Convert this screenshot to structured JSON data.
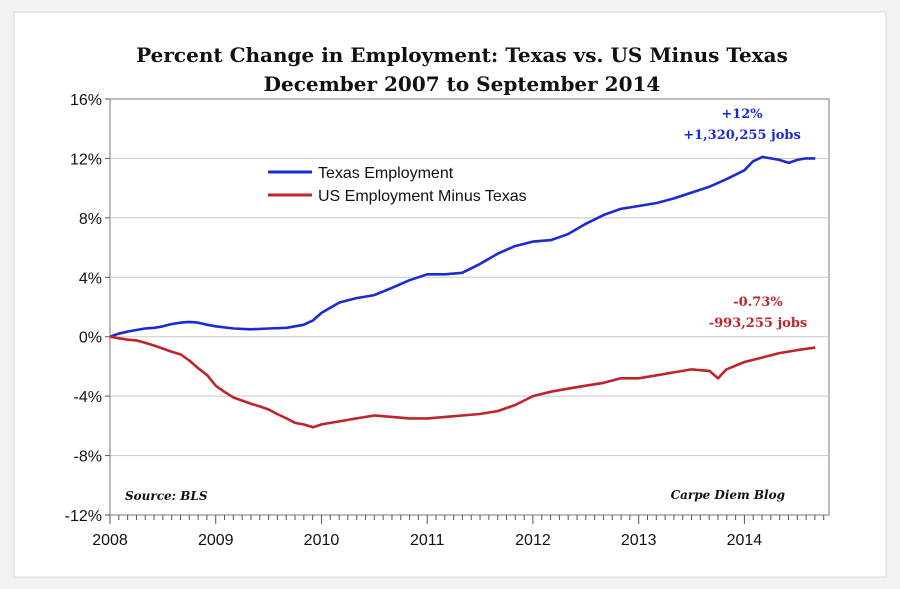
{
  "chart_data": {
    "type": "line",
    "title": "Percent Change in Employment: Texas vs. US Minus Texas",
    "subtitle": "December 2007 to September 2014",
    "xlabel": "",
    "ylabel": "",
    "xlim": [
      2008,
      2014.8
    ],
    "ylim": [
      -12,
      16
    ],
    "y_ticks": [
      16,
      12,
      8,
      4,
      0,
      -4,
      -8,
      -12
    ],
    "y_tick_labels": [
      "16%",
      "12%",
      "8%",
      "4%",
      "0%",
      "-4%",
      "-8%",
      "-12%"
    ],
    "x_ticks": [
      2008,
      2009,
      2010,
      2011,
      2012,
      2013,
      2014
    ],
    "x_tick_labels": [
      "2008",
      "2009",
      "2010",
      "2011",
      "2012",
      "2013",
      "2014"
    ],
    "grid": "horizontal",
    "legend_position": "top-center",
    "series": [
      {
        "name": "Texas Employment",
        "color": "#1a2bd1",
        "x": [
          2008,
          2008.08,
          2008.17,
          2008.25,
          2008.33,
          2008.42,
          2008.5,
          2008.58,
          2008.67,
          2008.75,
          2008.83,
          2008.92,
          2009,
          2009.17,
          2009.33,
          2009.5,
          2009.67,
          2009.83,
          2009.92,
          2010,
          2010.17,
          2010.33,
          2010.5,
          2010.67,
          2010.83,
          2011,
          2011.17,
          2011.33,
          2011.5,
          2011.67,
          2011.83,
          2012,
          2012.17,
          2012.33,
          2012.5,
          2012.67,
          2012.83,
          2013,
          2013.17,
          2013.33,
          2013.5,
          2013.67,
          2013.83,
          2014,
          2014.08,
          2014.17,
          2014.25,
          2014.33,
          2014.42,
          2014.5,
          2014.58,
          2014.67
        ],
        "values": [
          0,
          0.2,
          0.35,
          0.45,
          0.55,
          0.6,
          0.7,
          0.85,
          0.95,
          1.0,
          0.95,
          0.8,
          0.7,
          0.55,
          0.5,
          0.55,
          0.6,
          0.8,
          1.1,
          1.6,
          2.3,
          2.6,
          2.8,
          3.3,
          3.8,
          4.2,
          4.2,
          4.3,
          4.9,
          5.6,
          6.1,
          6.4,
          6.5,
          6.9,
          7.6,
          8.2,
          8.6,
          8.8,
          9.0,
          9.3,
          9.7,
          10.1,
          10.6,
          11.2,
          11.8,
          12.1,
          12.0,
          11.9,
          11.7,
          11.9,
          12.0,
          12.0
        ]
      },
      {
        "name": "US Employment Minus Texas",
        "color": "#c0242a",
        "x": [
          2008,
          2008.08,
          2008.17,
          2008.25,
          2008.33,
          2008.42,
          2008.5,
          2008.58,
          2008.67,
          2008.75,
          2008.83,
          2008.92,
          2009,
          2009.08,
          2009.17,
          2009.25,
          2009.33,
          2009.42,
          2009.5,
          2009.58,
          2009.67,
          2009.75,
          2009.83,
          2009.92,
          2010,
          2010.17,
          2010.33,
          2010.5,
          2010.67,
          2010.83,
          2011,
          2011.17,
          2011.33,
          2011.5,
          2011.67,
          2011.83,
          2012,
          2012.17,
          2012.33,
          2012.5,
          2012.67,
          2012.83,
          2013,
          2013.17,
          2013.33,
          2013.5,
          2013.67,
          2013.75,
          2013.83,
          2014,
          2014.17,
          2014.33,
          2014.5,
          2014.67
        ],
        "values": [
          0,
          -0.1,
          -0.2,
          -0.25,
          -0.4,
          -0.6,
          -0.8,
          -1.0,
          -1.2,
          -1.6,
          -2.1,
          -2.6,
          -3.3,
          -3.7,
          -4.1,
          -4.3,
          -4.5,
          -4.7,
          -4.9,
          -5.2,
          -5.5,
          -5.8,
          -5.9,
          -6.1,
          -5.9,
          -5.7,
          -5.5,
          -5.3,
          -5.4,
          -5.5,
          -5.5,
          -5.4,
          -5.3,
          -5.2,
          -5.0,
          -4.6,
          -4.0,
          -3.7,
          -3.5,
          -3.3,
          -3.1,
          -2.8,
          -2.8,
          -2.6,
          -2.4,
          -2.2,
          -2.3,
          -2.8,
          -2.2,
          -1.7,
          -1.4,
          -1.1,
          -0.9,
          -0.73
        ]
      }
    ],
    "annotations": [
      {
        "lines": [
          "+12%",
          "+1,320,255 jobs"
        ],
        "color": "#1a2bd1"
      },
      {
        "lines": [
          "-0.73%",
          "-993,255 jobs"
        ],
        "color": "#c0242a"
      }
    ],
    "source_note": "Source: BLS",
    "credit_note": "Carpe Diem Blog"
  }
}
